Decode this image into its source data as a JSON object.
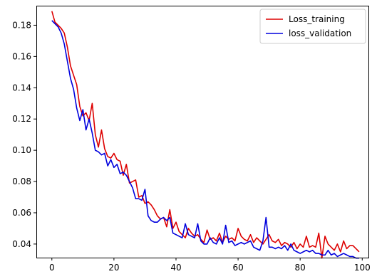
{
  "chart_data": {
    "type": "line",
    "title": "",
    "xlabel": "",
    "ylabel": "",
    "xlim": [
      -5,
      102
    ],
    "ylim": [
      0.0313,
      0.1925
    ],
    "xticks": [
      0,
      20,
      40,
      60,
      80,
      100
    ],
    "xtick_labels": [
      "0",
      "20",
      "40",
      "60",
      "80",
      "100"
    ],
    "yticks": [
      0.04,
      0.06,
      0.08,
      0.1,
      0.12,
      0.14,
      0.16,
      0.18
    ],
    "ytick_labels": [
      "0.04",
      "0.06",
      "0.08",
      "0.10",
      "0.12",
      "0.14",
      "0.16",
      "0.18"
    ],
    "grid": false,
    "legend": {
      "placement": "top-right"
    },
    "series": [
      {
        "name": "Loss_training",
        "color": "#dd0000",
        "values": [
          0.189,
          0.182,
          0.18,
          0.178,
          0.175,
          0.166,
          0.154,
          0.148,
          0.142,
          0.128,
          0.122,
          0.124,
          0.119,
          0.13,
          0.11,
          0.102,
          0.113,
          0.101,
          0.096,
          0.095,
          0.098,
          0.094,
          0.093,
          0.084,
          0.091,
          0.079,
          0.08,
          0.081,
          0.07,
          0.071,
          0.066,
          0.067,
          0.065,
          0.062,
          0.058,
          0.056,
          0.057,
          0.051,
          0.062,
          0.05,
          0.054,
          0.048,
          0.046,
          0.044,
          0.05,
          0.047,
          0.045,
          0.046,
          0.043,
          0.041,
          0.049,
          0.043,
          0.044,
          0.042,
          0.047,
          0.041,
          0.045,
          0.043,
          0.044,
          0.042,
          0.05,
          0.045,
          0.043,
          0.042,
          0.046,
          0.041,
          0.044,
          0.042,
          0.04,
          0.043,
          0.046,
          0.042,
          0.041,
          0.043,
          0.039,
          0.041,
          0.04,
          0.038,
          0.041,
          0.037,
          0.04,
          0.038,
          0.045,
          0.038,
          0.039,
          0.038,
          0.047,
          0.031,
          0.045,
          0.04,
          0.038,
          0.036,
          0.04,
          0.035,
          0.042,
          0.037,
          0.039,
          0.039,
          0.037,
          0.035
        ]
      },
      {
        "name": "loss_validation",
        "color": "#0000dd",
        "values": [
          0.183,
          0.181,
          0.179,
          0.175,
          0.168,
          0.157,
          0.146,
          0.139,
          0.127,
          0.119,
          0.126,
          0.113,
          0.12,
          0.111,
          0.1,
          0.099,
          0.097,
          0.098,
          0.09,
          0.094,
          0.089,
          0.091,
          0.085,
          0.086,
          0.084,
          0.08,
          0.076,
          0.069,
          0.069,
          0.068,
          0.075,
          0.058,
          0.055,
          0.054,
          0.054,
          0.056,
          0.057,
          0.055,
          0.057,
          0.047,
          0.046,
          0.045,
          0.044,
          0.053,
          0.046,
          0.045,
          0.044,
          0.053,
          0.042,
          0.04,
          0.04,
          0.044,
          0.041,
          0.04,
          0.044,
          0.04,
          0.052,
          0.041,
          0.042,
          0.039,
          0.04,
          0.041,
          0.04,
          0.041,
          0.042,
          0.038,
          0.037,
          0.036,
          0.042,
          0.057,
          0.038,
          0.038,
          0.037,
          0.038,
          0.037,
          0.039,
          0.036,
          0.04,
          0.036,
          0.035,
          0.034,
          0.035,
          0.036,
          0.035,
          0.036,
          0.034,
          0.034,
          0.033,
          0.033,
          0.036,
          0.033,
          0.034,
          0.032,
          0.033,
          0.034,
          0.033,
          0.032,
          0.032,
          0.031,
          0.031
        ]
      }
    ]
  }
}
